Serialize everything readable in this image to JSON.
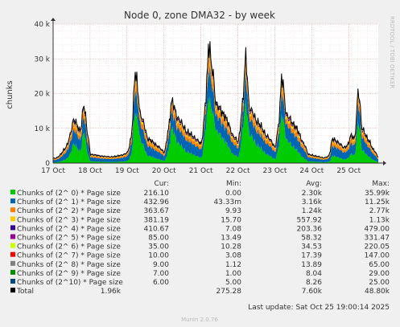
{
  "chart_data": {
    "type": "area",
    "title": "Node 0, zone DMA32 - by week",
    "ylabel": "chunks",
    "side_label": "RRDTOOL / TOBI OETIKER",
    "x_tick_labels": [
      "17 Oct",
      "18 Oct",
      "19 Oct",
      "20 Oct",
      "21 Oct",
      "22 Oct",
      "23 Oct",
      "24 Oct",
      "25 Oct"
    ],
    "y_ticks": [
      0,
      10000,
      20000,
      30000,
      40000
    ],
    "y_tick_labels": [
      "0",
      "10 k",
      "20 k",
      "30 k",
      "40 k"
    ],
    "ylim": [
      0,
      40000
    ],
    "xlim_days": [
      0,
      8.8
    ],
    "grid": true,
    "stacked": true,
    "series_colors": [
      "#00cc00",
      "#0066b3",
      "#ff8000",
      "#ffcc00",
      "#330099",
      "#990099",
      "#ccff00",
      "#ff0000",
      "#808080",
      "#008f00",
      "#00487d"
    ],
    "total_color": "#000000",
    "peaks": [
      {
        "t": 0.06,
        "v": 1400
      },
      {
        "t": 0.3,
        "v": 4000
      },
      {
        "t": 0.55,
        "v": 12500
      },
      {
        "t": 0.72,
        "v": 9000
      },
      {
        "t": 0.82,
        "v": 17000
      },
      {
        "t": 0.92,
        "v": 9000
      },
      {
        "t": 1.0,
        "v": 2500
      },
      {
        "t": 1.3,
        "v": 2000
      },
      {
        "t": 1.55,
        "v": 1800
      },
      {
        "t": 1.8,
        "v": 2200
      },
      {
        "t": 2.0,
        "v": 3000
      },
      {
        "t": 2.1,
        "v": 7000
      },
      {
        "t": 2.21,
        "v": 26500
      },
      {
        "t": 2.35,
        "v": 14000
      },
      {
        "t": 2.55,
        "v": 7000
      },
      {
        "t": 2.8,
        "v": 5000
      },
      {
        "t": 3.0,
        "v": 3000
      },
      {
        "t": 3.1,
        "v": 9000
      },
      {
        "t": 3.2,
        "v": 18000
      },
      {
        "t": 3.35,
        "v": 13000
      },
      {
        "t": 3.6,
        "v": 9000
      },
      {
        "t": 3.85,
        "v": 7000
      },
      {
        "t": 4.0,
        "v": 5500
      },
      {
        "t": 4.12,
        "v": 18000
      },
      {
        "t": 4.2,
        "v": 34000
      },
      {
        "t": 4.3,
        "v": 27000
      },
      {
        "t": 4.4,
        "v": 17000
      },
      {
        "t": 4.6,
        "v": 14000
      },
      {
        "t": 4.85,
        "v": 8000
      },
      {
        "t": 5.0,
        "v": 6000
      },
      {
        "t": 5.1,
        "v": 15000
      },
      {
        "t": 5.2,
        "v": 31000
      },
      {
        "t": 5.3,
        "v": 16000
      },
      {
        "t": 5.5,
        "v": 12000
      },
      {
        "t": 5.75,
        "v": 8000
      },
      {
        "t": 6.0,
        "v": 4500
      },
      {
        "t": 6.08,
        "v": 10000
      },
      {
        "t": 6.18,
        "v": 25000
      },
      {
        "t": 6.3,
        "v": 14000
      },
      {
        "t": 6.5,
        "v": 11000
      },
      {
        "t": 6.75,
        "v": 6000
      },
      {
        "t": 6.9,
        "v": 2500
      },
      {
        "t": 7.1,
        "v": 2000
      },
      {
        "t": 7.3,
        "v": 1500
      },
      {
        "t": 7.45,
        "v": 2000
      },
      {
        "t": 7.55,
        "v": 7000
      },
      {
        "t": 7.7,
        "v": 6000
      },
      {
        "t": 7.85,
        "v": 4500
      },
      {
        "t": 7.95,
        "v": 5000
      },
      {
        "t": 8.05,
        "v": 8000
      },
      {
        "t": 8.15,
        "v": 7000
      },
      {
        "t": 8.25,
        "v": 21000
      },
      {
        "t": 8.35,
        "v": 10000
      },
      {
        "t": 8.5,
        "v": 7000
      },
      {
        "t": 8.65,
        "v": 4000
      },
      {
        "t": 8.78,
        "v": 1900
      }
    ]
  },
  "legend": {
    "headers": {
      "cur": "Cur:",
      "min": "Min:",
      "avg": "Avg:",
      "max": "Max:"
    },
    "rows": [
      {
        "label": "Chunks of (2^ 0) * Page size",
        "color": "#00cc00",
        "cur": "216.10",
        "min": "0.00",
        "avg": "2.30k",
        "max": "35.99k"
      },
      {
        "label": "Chunks of (2^ 1) * Page size",
        "color": "#0066b3",
        "cur": "432.96",
        "min": "43.33m",
        "avg": "3.16k",
        "max": "11.25k"
      },
      {
        "label": "Chunks of (2^ 2) * Page size",
        "color": "#ff8000",
        "cur": "363.67",
        "min": "9.93",
        "avg": "1.24k",
        "max": "2.77k"
      },
      {
        "label": "Chunks of (2^ 3) * Page size",
        "color": "#ffcc00",
        "cur": "381.19",
        "min": "15.70",
        "avg": "557.92",
        "max": "1.13k"
      },
      {
        "label": "Chunks of (2^ 4) * Page size",
        "color": "#330099",
        "cur": "410.67",
        "min": "7.08",
        "avg": "203.36",
        "max": "479.00"
      },
      {
        "label": "Chunks of (2^ 5) * Page size",
        "color": "#990099",
        "cur": "85.00",
        "min": "13.49",
        "avg": "58.32",
        "max": "331.47"
      },
      {
        "label": "Chunks of (2^ 6) * Page size",
        "color": "#ccff00",
        "cur": "35.00",
        "min": "10.28",
        "avg": "34.53",
        "max": "220.05"
      },
      {
        "label": "Chunks of (2^ 7) * Page size",
        "color": "#ff0000",
        "cur": "10.00",
        "min": "3.08",
        "avg": "17.39",
        "max": "147.00"
      },
      {
        "label": "Chunks of (2^ 8) * Page size",
        "color": "#808080",
        "cur": "9.00",
        "min": "1.12",
        "avg": "13.89",
        "max": "65.00"
      },
      {
        "label": "Chunks of (2^ 9) * Page size",
        "color": "#008f00",
        "cur": "7.00",
        "min": "1.00",
        "avg": "8.04",
        "max": "29.00"
      },
      {
        "label": "Chunks of (2^10) * Page size",
        "color": "#00487d",
        "cur": "6.00",
        "min": "5.00",
        "avg": "8.26",
        "max": "25.00"
      }
    ],
    "total": {
      "label": "Total",
      "color": "#000000",
      "cur": "1.96k",
      "min": "275.28",
      "avg": "7.60k",
      "max": "48.80k"
    }
  },
  "last_update": "Last update: Sat Oct 25 19:00:14 2025",
  "footer": "Munin 2.0.76"
}
